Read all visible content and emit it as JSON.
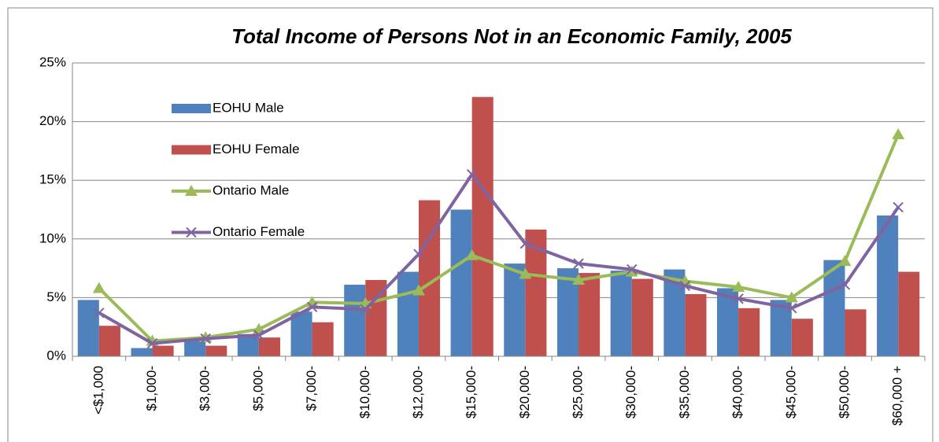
{
  "chart_data": {
    "type": "bar",
    "title": "Total Income of Persons Not in an Economic Family, 2005",
    "categories": [
      "<$1,000",
      "$1,000-",
      "$3,000-",
      "$5,000-",
      "$7,000-",
      "$10,000-",
      "$12,000-",
      "$15,000-",
      "$20,000-",
      "$25,000-",
      "$30,000-",
      "$35,000-",
      "$40,000-",
      "$45,000-",
      "$50,000-",
      "$60,000 +"
    ],
    "series": [
      {
        "name": "EOHU Male",
        "type": "bar",
        "color": "#4f81bd",
        "values": [
          4.8,
          0.7,
          1.5,
          1.9,
          3.8,
          6.1,
          7.2,
          12.5,
          7.9,
          7.5,
          7.3,
          7.4,
          5.8,
          4.8,
          8.2,
          12.0
        ]
      },
      {
        "name": "EOHU Female",
        "type": "bar",
        "color": "#c0504d",
        "values": [
          2.6,
          0.9,
          0.9,
          1.6,
          2.9,
          6.5,
          13.3,
          22.1,
          10.8,
          7.1,
          6.6,
          5.3,
          4.1,
          3.2,
          4.0,
          7.2
        ]
      },
      {
        "name": "Ontario Male",
        "type": "line",
        "marker": "triangle",
        "color": "#9bbb59",
        "values": [
          5.8,
          1.3,
          1.6,
          2.3,
          4.6,
          4.5,
          5.6,
          8.6,
          7.0,
          6.5,
          7.2,
          6.4,
          5.9,
          5.0,
          8.1,
          18.9
        ]
      },
      {
        "name": "Ontario Female",
        "type": "line",
        "marker": "x",
        "color": "#8064a2",
        "values": [
          3.7,
          1.1,
          1.5,
          1.8,
          4.2,
          4.0,
          8.7,
          15.5,
          9.6,
          7.9,
          7.4,
          6.0,
          4.9,
          4.1,
          6.1,
          12.7
        ]
      }
    ],
    "ylim": [
      0,
      25
    ],
    "yticks": [
      {
        "value": 0,
        "label": "0%"
      },
      {
        "value": 5,
        "label": "5%"
      },
      {
        "value": 10,
        "label": "10%"
      },
      {
        "value": 15,
        "label": "15%"
      },
      {
        "value": 20,
        "label": "20%"
      },
      {
        "value": 25,
        "label": "25%"
      }
    ],
    "grid": true,
    "legend": "upper-left"
  }
}
